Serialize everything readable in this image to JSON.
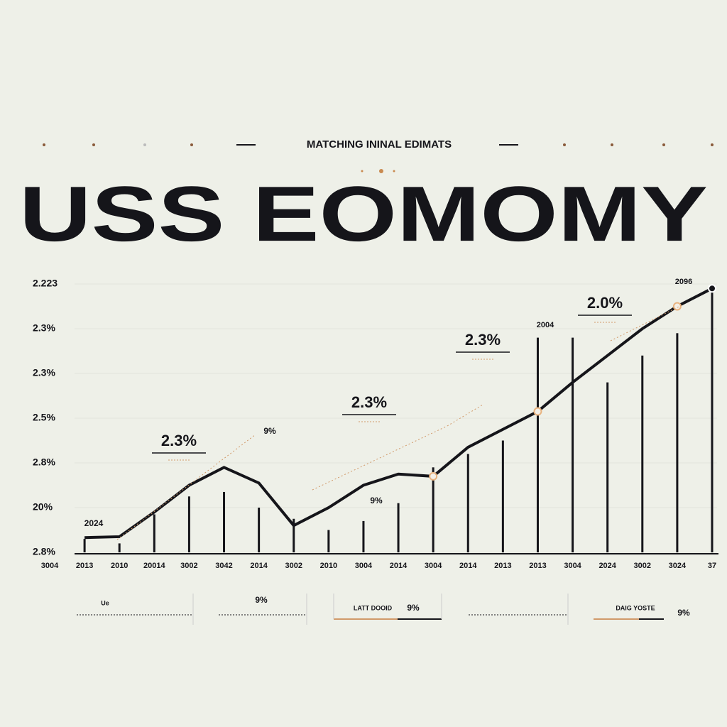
{
  "header": {
    "subtitle": "MATCHING ININAL EDIMATS",
    "title": "USS EOMOMY"
  },
  "chart_data": {
    "type": "bar",
    "categories": [
      "3004",
      "2013",
      "2010",
      "20014",
      "3002",
      "3042",
      "2014",
      "3002",
      "2010",
      "3004",
      "2014",
      "3004",
      "2014",
      "2013",
      "2013",
      "3004",
      "2024",
      "3002",
      "3024",
      "37"
    ],
    "series": [
      {
        "type": "bar",
        "color": "#15151a",
        "values": [
          null,
          0.3,
          0.2,
          0.85,
          1.25,
          1.35,
          1.0,
          0.75,
          0.5,
          0.7,
          1.1,
          1.9,
          2.2,
          2.5,
          4.8,
          4.8,
          3.8,
          4.4,
          4.9,
          5.85
        ]
      },
      {
        "type": "line",
        "color": "#15151a",
        "values": [
          null,
          0.33,
          0.35,
          0.9,
          1.5,
          1.9,
          1.55,
          0.6,
          1.0,
          1.5,
          1.75,
          1.7,
          2.35,
          2.75,
          3.15,
          3.8,
          4.4,
          5.0,
          5.5,
          5.9
        ]
      }
    ],
    "ylim": [
      0,
      6
    ],
    "yticks": [
      {
        "value": 0,
        "label": "2.8%"
      },
      {
        "value": 1,
        "label": "20%"
      },
      {
        "value": 2,
        "label": "2.8%"
      },
      {
        "value": 3,
        "label": "2.5%"
      },
      {
        "value": 4,
        "label": "2.3%"
      },
      {
        "value": 5,
        "label": "2.3%"
      },
      {
        "value": 6,
        "label": "2.223"
      }
    ],
    "grid": true,
    "annotations": [
      "2.3%",
      "2.3%",
      "2.3%",
      "2.0%",
      "9%",
      "9%",
      "2096",
      "2004",
      "2024"
    ]
  },
  "footer": {
    "items": [
      "Ue",
      "9%",
      "LATT DOOID",
      "9%",
      "DAIG YOSTE",
      "9%"
    ]
  }
}
